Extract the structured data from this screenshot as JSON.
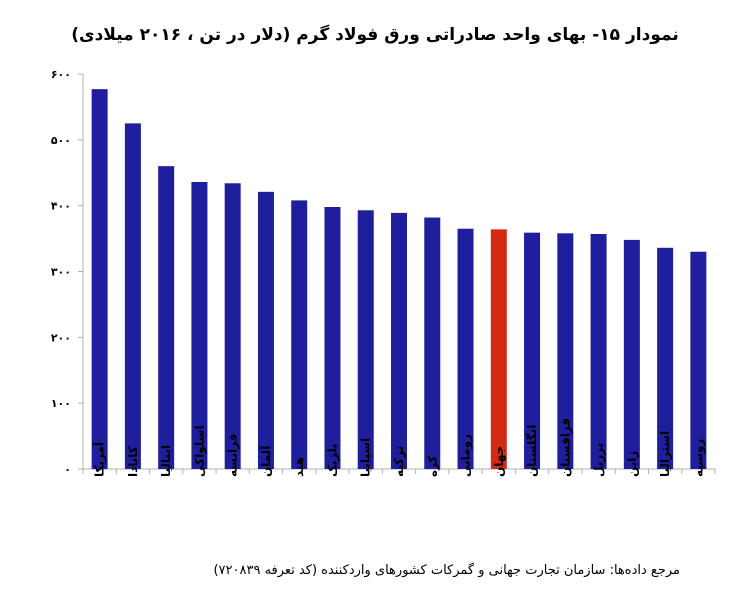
{
  "chart_data": {
    "type": "bar",
    "title": "نمودار ۱۵- بهای واحد صادراتی ورق فولاد گرم (دلار در تن ، ۲۰۱۶ میلادی)",
    "categories": [
      "آمریکا",
      "کانادا",
      "ایتالیا",
      "اسلواکی",
      "فرانسه",
      "آلمان",
      "هند",
      "بلژیک",
      "اسپانیا",
      "ترکیه",
      "کره",
      "رومانی",
      "جهان",
      "انگلستان",
      "قزاقستان",
      "برزیل",
      "ژاپن",
      "استرالیا",
      "روسیه"
    ],
    "values": [
      577,
      525,
      460,
      436,
      434,
      421,
      408,
      398,
      393,
      389,
      382,
      365,
      364,
      359,
      358,
      357,
      348,
      336,
      330
    ],
    "highlight_category": "جهان",
    "ylim": [
      0,
      600
    ],
    "yticks": [
      0,
      100,
      200,
      300,
      400,
      500,
      600
    ],
    "ytick_labels": [
      "۰",
      "۱۰۰",
      "۲۰۰",
      "۳۰۰",
      "۴۰۰",
      "۵۰۰",
      "۶۰۰"
    ],
    "grid": false,
    "legend": "none",
    "colors": {
      "bar": "#1f1f9e",
      "highlight": "#d42a14",
      "axis": "#b0b0b0"
    },
    "source": "مرجع داده‌ها: سازمان تجارت جهانی و گمرکات کشورهای واردکننده (کد تعرفه ۷۲۰۸۳۹)"
  }
}
